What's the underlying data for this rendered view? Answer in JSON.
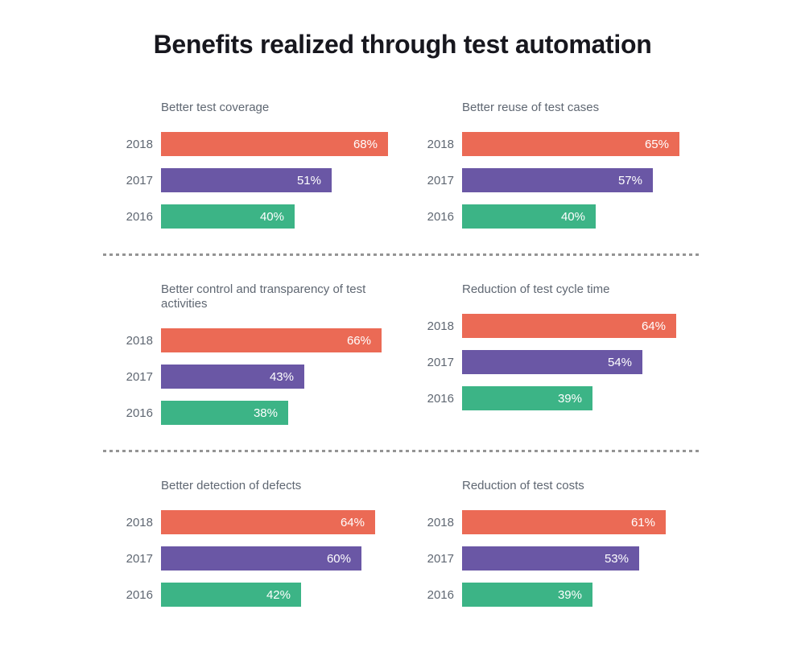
{
  "page": {
    "title": "Benefits realized through test automation",
    "background": "#ffffff"
  },
  "palette": {
    "2018": "#eb6a55",
    "2017": "#6a57a5",
    "2016": "#3cb486",
    "value_label_text": "#ffffff",
    "axis_text": "#5f6772",
    "title_text": "#17171e",
    "separator": "#949494"
  },
  "chart_data": [
    {
      "type": "bar",
      "orientation": "horizontal",
      "title": "Better test coverage",
      "categories": [
        "2018",
        "2017",
        "2016"
      ],
      "values": [
        68,
        51,
        40
      ],
      "labels": [
        "68%",
        "51%",
        "40%"
      ],
      "unit": "%",
      "xlim": [
        0,
        100
      ],
      "grid": false,
      "legend_position": "none"
    },
    {
      "type": "bar",
      "orientation": "horizontal",
      "title": "Better reuse of test cases",
      "categories": [
        "2018",
        "2017",
        "2016"
      ],
      "values": [
        65,
        57,
        40
      ],
      "labels": [
        "65%",
        "57%",
        "40%"
      ],
      "unit": "%",
      "xlim": [
        0,
        100
      ],
      "grid": false,
      "legend_position": "none"
    },
    {
      "type": "bar",
      "orientation": "horizontal",
      "title": "Better control and transparency of test activities",
      "categories": [
        "2018",
        "2017",
        "2016"
      ],
      "values": [
        66,
        43,
        38
      ],
      "labels": [
        "66%",
        "43%",
        "38%"
      ],
      "unit": "%",
      "xlim": [
        0,
        100
      ],
      "grid": false,
      "legend_position": "none"
    },
    {
      "type": "bar",
      "orientation": "horizontal",
      "title": "Reduction of test cycle time",
      "categories": [
        "2018",
        "2017",
        "2016"
      ],
      "values": [
        64,
        54,
        39
      ],
      "labels": [
        "64%",
        "54%",
        "39%"
      ],
      "unit": "%",
      "xlim": [
        0,
        100
      ],
      "grid": false,
      "legend_position": "none"
    },
    {
      "type": "bar",
      "orientation": "horizontal",
      "title": "Better detection of defects",
      "categories": [
        "2018",
        "2017",
        "2016"
      ],
      "values": [
        64,
        60,
        42
      ],
      "labels": [
        "64%",
        "60%",
        "42%"
      ],
      "unit": "%",
      "xlim": [
        0,
        100
      ],
      "grid": false,
      "legend_position": "none"
    },
    {
      "type": "bar",
      "orientation": "horizontal",
      "title": "Reduction of test costs",
      "categories": [
        "2018",
        "2017",
        "2016"
      ],
      "values": [
        61,
        53,
        39
      ],
      "labels": [
        "61%",
        "53%",
        "39%"
      ],
      "unit": "%",
      "xlim": [
        0,
        100
      ],
      "grid": false,
      "legend_position": "none"
    }
  ]
}
